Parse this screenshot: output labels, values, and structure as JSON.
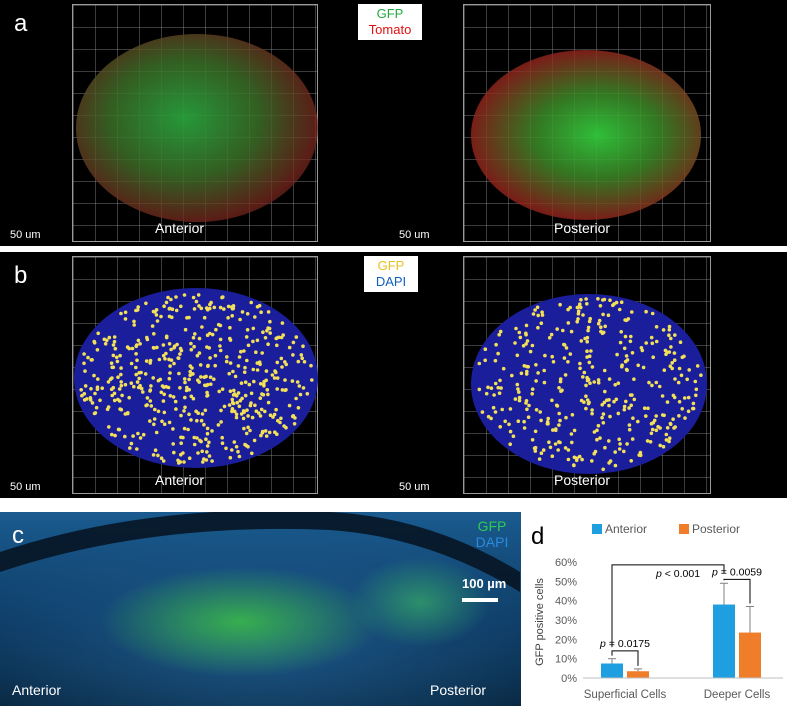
{
  "panel_a": {
    "letter": "a",
    "legend_line1": "GFP",
    "legend_line2": "Tomato",
    "left_caption": "Anterior",
    "right_caption": "Posterior",
    "scale_left": "50 um",
    "scale_right": "50 um"
  },
  "panel_b": {
    "letter": "b",
    "legend_line1": "GFP",
    "legend_line2": "DAPI",
    "left_caption": "Anterior",
    "right_caption": "Posterior",
    "scale_left": "50 um",
    "scale_right": "50 um"
  },
  "panel_c": {
    "letter": "c",
    "legend_line1": "GFP",
    "legend_line2": "DAPI",
    "scale_bar": "100 µm",
    "left_caption": "Anterior",
    "right_caption": "Posterior"
  },
  "colors": {
    "gfp": "#22cc44",
    "tomato": "#e01010",
    "gfp_spot": "#f2e05a",
    "dapi": "#0a63c7",
    "anterior": "#1f9ee0",
    "posterior": "#f07d2a"
  },
  "chart_data": {
    "type": "bar",
    "panel_letter": "d",
    "categories": [
      "Superficial Cells",
      "Deeper Cells"
    ],
    "series": [
      {
        "name": "Anterior",
        "values": [
          7.5,
          38
        ],
        "errors": [
          2.5,
          11
        ]
      },
      {
        "name": "Posterior",
        "values": [
          3.5,
          23.5
        ],
        "errors": [
          1.2,
          13.5
        ]
      }
    ],
    "ylabel": "GFP positive cells",
    "ylim": [
      0,
      60
    ],
    "yticks": [
      "0%",
      "10%",
      "20%",
      "30%",
      "40%",
      "50%",
      "60%"
    ],
    "legend_position": "top",
    "annotations": [
      {
        "text": "p = 0.0175",
        "italic_part": "p",
        "rest": " = 0.0175"
      },
      {
        "text": "p = 0.0059",
        "italic_part": "p",
        "rest": " = 0.0059"
      },
      {
        "text": "p < 0.001",
        "italic_part": "p",
        "rest": " < 0.001"
      }
    ],
    "grid": false
  }
}
